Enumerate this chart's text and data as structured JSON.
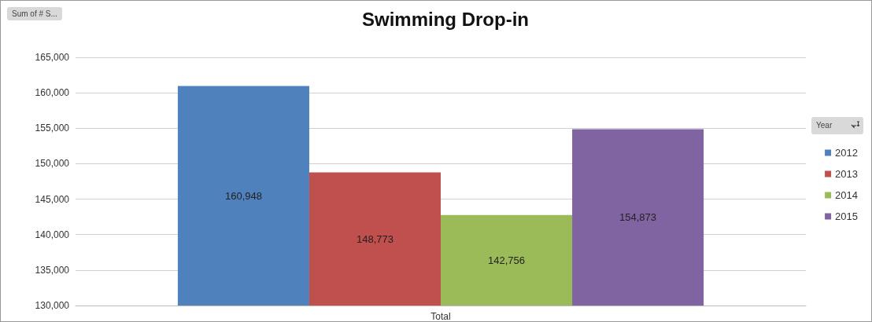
{
  "chart_data": {
    "type": "bar",
    "title": "Swimming Drop-in",
    "ylabel": "Sum of # S...",
    "legend_title": "Year",
    "categories": [
      "Total"
    ],
    "series": [
      {
        "name": "2012",
        "color": "#4f81bd",
        "values": [
          160948
        ],
        "value_labels": [
          "160,948"
        ]
      },
      {
        "name": "2013",
        "color": "#c0504d",
        "values": [
          148773
        ],
        "value_labels": [
          "148,773"
        ]
      },
      {
        "name": "2014",
        "color": "#9bbb59",
        "values": [
          142756
        ],
        "value_labels": [
          "142,756"
        ]
      },
      {
        "name": "2015",
        "color": "#8064a2",
        "values": [
          154873
        ],
        "value_labels": [
          "154,873"
        ]
      }
    ],
    "ylim": [
      130000,
      165000
    ],
    "yticks": [
      {
        "value": 130000,
        "label": "130,000"
      },
      {
        "value": 135000,
        "label": "135,000"
      },
      {
        "value": 140000,
        "label": "140,000"
      },
      {
        "value": 145000,
        "label": "145,000"
      },
      {
        "value": 150000,
        "label": "150,000"
      },
      {
        "value": 155000,
        "label": "155,000"
      },
      {
        "value": 160000,
        "label": "160,000"
      },
      {
        "value": 165000,
        "label": "165,000"
      }
    ],
    "grid": "y",
    "legend": "right"
  }
}
